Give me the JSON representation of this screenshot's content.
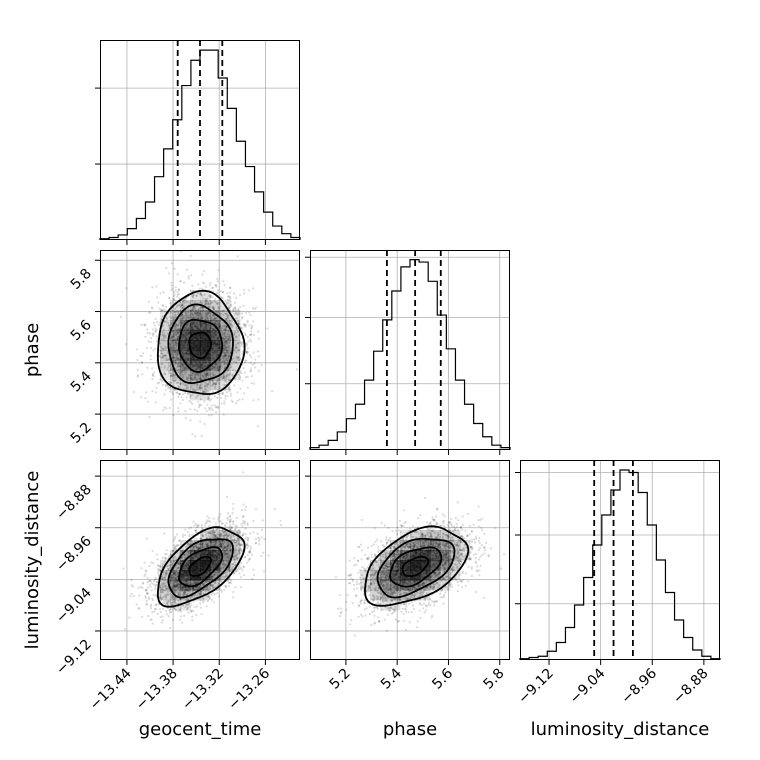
{
  "chart_data": {
    "type": "corner",
    "parameters": [
      {
        "name": "geocent_time",
        "label": "geocent_time",
        "range": [
          -13.475,
          -13.215
        ],
        "ticks": [
          -13.44,
          -13.38,
          -13.32,
          -13.26
        ],
        "tick_labels": [
          "−13.44",
          "−13.38",
          "−13.32",
          "−13.26"
        ],
        "mean": -13.345,
        "sd": 0.028,
        "quantiles": [
          -13.374,
          -13.345,
          -13.316
        ]
      },
      {
        "name": "phase",
        "label": "phase",
        "range": [
          5.06,
          5.84
        ],
        "ticks": [
          5.2,
          5.4,
          5.6,
          5.8
        ],
        "tick_labels": [
          "5.2",
          "5.4",
          "5.6",
          "5.8"
        ],
        "mean": 5.47,
        "sd": 0.1,
        "quantiles": [
          5.36,
          5.47,
          5.57
        ]
      },
      {
        "name": "luminosity_distance",
        "label": "luminosity_distance",
        "range": [
          -9.165,
          -8.855
        ],
        "ticks": [
          -9.12,
          -9.04,
          -8.96,
          -8.88
        ],
        "tick_labels": [
          "−9.12",
          "−9.04",
          "−8.96",
          "−8.88"
        ],
        "mean": -9.02,
        "sd": 0.03,
        "quantiles": [
          -9.05,
          -9.02,
          -8.99
        ]
      }
    ],
    "histograms": [
      {
        "parameter": "geocent_time",
        "counts": [
          1,
          2,
          4,
          9,
          17,
          30,
          50,
          72,
          95,
          122,
          142,
          150,
          150,
          128,
          104,
          78,
          58,
          38,
          22,
          11,
          5,
          2
        ],
        "ylim": [
          0,
          158
        ],
        "y_ticks": [
          60,
          120
        ]
      },
      {
        "parameter": "phase",
        "counts": [
          2,
          4,
          8,
          15,
          26,
          38,
          58,
          82,
          108,
          132,
          152,
          158,
          156,
          140,
          112,
          84,
          58,
          38,
          22,
          11,
          4,
          2
        ],
        "ylim": [
          0,
          166
        ],
        "y_ticks": [
          55,
          110,
          160
        ]
      },
      {
        "parameter": "luminosity_distance",
        "counts": [
          1,
          2,
          3,
          7,
          14,
          26,
          44,
          66,
          92,
          116,
          136,
          152,
          150,
          134,
          108,
          80,
          54,
          32,
          18,
          8,
          3,
          1
        ],
        "ylim": [
          0,
          160
        ],
        "y_ticks": [
          45,
          100,
          150
        ]
      }
    ],
    "correlations": [
      {
        "x": "geocent_time",
        "y": "phase",
        "rho": 0.0
      },
      {
        "x": "geocent_time",
        "y": "luminosity_distance",
        "rho": 0.55
      },
      {
        "x": "phase",
        "y": "luminosity_distance",
        "rho": 0.45
      }
    ],
    "contour_levels": [
      0.5,
      1.0,
      1.5,
      2.0
    ],
    "grid": true,
    "colors": {
      "lines": "#000000",
      "grid": "#b0b0b0",
      "density": "#000000"
    }
  }
}
